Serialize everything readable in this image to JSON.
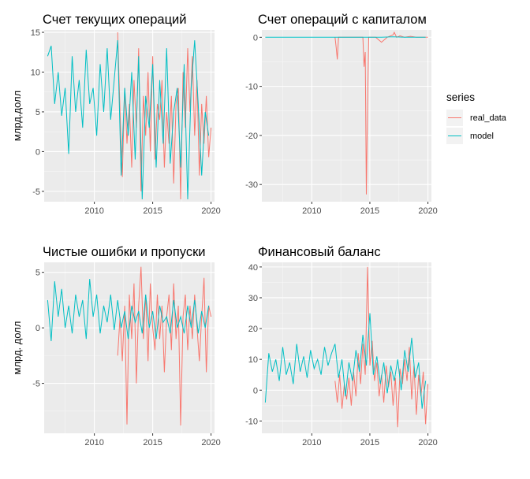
{
  "legend": {
    "title": "series",
    "placement": "right",
    "entries": [
      {
        "label": "real_data",
        "color": "#F8766D"
      },
      {
        "label": "model",
        "color": "#00BFC4"
      }
    ]
  },
  "chart_data": [
    {
      "type": "line",
      "title": "Счет текущих операций",
      "ylabel": "млрд.долл",
      "xlim": [
        2005.7,
        2020.3
      ],
      "ylim": [
        -6.3,
        15.3
      ],
      "xticks": [
        2010,
        2015,
        2020
      ],
      "yticks": [
        -5,
        0,
        5,
        10,
        15
      ],
      "grid": true,
      "series": [
        {
          "name": "real_data",
          "color": "#F8766D",
          "x": [
            2012.0,
            2012.2,
            2012.4,
            2012.6,
            2012.8,
            2013.0,
            2013.2,
            2013.4,
            2013.6,
            2013.8,
            2014.0,
            2014.2,
            2014.4,
            2014.6,
            2014.8,
            2015.0,
            2015.2,
            2015.4,
            2015.6,
            2015.8,
            2016.0,
            2016.2,
            2016.4,
            2016.6,
            2016.8,
            2017.0,
            2017.2,
            2017.4,
            2017.6,
            2017.8,
            2018.0,
            2018.2,
            2018.4,
            2018.6,
            2018.8,
            2019.0,
            2019.2,
            2019.4,
            2019.6,
            2019.8,
            2020.0
          ],
          "y": [
            15.0,
            5,
            -3.2,
            8,
            1,
            6,
            -2,
            9,
            3,
            13,
            -5,
            7,
            2,
            10,
            0,
            12,
            -1,
            6,
            4,
            9,
            -2,
            5,
            1,
            7,
            -4,
            6,
            8,
            -6,
            10,
            3,
            13,
            5,
            12,
            2,
            9,
            -3,
            6,
            1,
            7,
            -0.7,
            3
          ]
        },
        {
          "name": "model",
          "color": "#00BFC4",
          "x": [
            2006.0,
            2006.3,
            2006.6,
            2006.9,
            2007.2,
            2007.5,
            2007.8,
            2008.1,
            2008.4,
            2008.7,
            2009.0,
            2009.3,
            2009.6,
            2009.9,
            2010.2,
            2010.5,
            2010.8,
            2011.1,
            2011.4,
            2011.7,
            2012.0,
            2012.3,
            2012.6,
            2012.9,
            2013.2,
            2013.5,
            2013.8,
            2014.1,
            2014.4,
            2014.7,
            2015.0,
            2015.3,
            2015.6,
            2015.9,
            2016.2,
            2016.5,
            2016.8,
            2017.1,
            2017.4,
            2017.7,
            2018.0,
            2018.3,
            2018.6,
            2018.9,
            2019.2,
            2019.5,
            2019.8
          ],
          "y": [
            12,
            13.3,
            6,
            10,
            4.5,
            8,
            -0.3,
            12,
            5,
            9,
            3,
            12.8,
            6,
            8,
            2,
            11,
            5,
            13,
            4,
            9,
            14,
            -3,
            8,
            2,
            10,
            -1,
            12,
            -6,
            7,
            3,
            11,
            -2,
            9,
            1,
            13,
            -1.5,
            5,
            8,
            -2,
            11,
            -6,
            8,
            14,
            6,
            -3,
            5,
            2
          ]
        }
      ]
    },
    {
      "type": "line",
      "title": "Счет операций с капиталом",
      "ylabel": "",
      "xlim": [
        2005.7,
        2020.3
      ],
      "ylim": [
        -33.5,
        1.5
      ],
      "xticks": [
        2010,
        2015,
        2020
      ],
      "yticks": [
        -30,
        -20,
        -10,
        0
      ],
      "grid": true,
      "series": [
        {
          "name": "real_data",
          "color": "#F8766D",
          "x": [
            2012.0,
            2012.1,
            2012.2,
            2012.3,
            2012.5,
            2013.0,
            2013.5,
            2014.0,
            2014.4,
            2014.5,
            2014.6,
            2014.7,
            2014.8,
            2014.9,
            2015.0,
            2015.5,
            2016.0,
            2016.5,
            2017.0,
            2017.1,
            2017.3,
            2017.6,
            2018.0,
            2018.5,
            2019.0,
            2019.5,
            2020.0
          ],
          "y": [
            0,
            -2,
            -4.5,
            0,
            0,
            0,
            0,
            0,
            0,
            -6,
            -3,
            -32,
            -14,
            0,
            0,
            0,
            -1,
            0,
            0.5,
            1,
            0,
            0.3,
            0,
            0.2,
            0,
            0,
            0
          ]
        },
        {
          "name": "model",
          "color": "#00BFC4",
          "x": [
            2006.0,
            2008.0,
            2010.0,
            2012.0,
            2014.0,
            2016.0,
            2017.0,
            2018.0,
            2019.0,
            2019.8
          ],
          "y": [
            0,
            0,
            0,
            0,
            0,
            0,
            0.1,
            0,
            0,
            0
          ]
        }
      ]
    },
    {
      "type": "line",
      "title": "Чистые ошибки и пропуски",
      "ylabel": "млрд. долл",
      "xlim": [
        2005.7,
        2020.3
      ],
      "ylim": [
        -9.5,
        5.9
      ],
      "xticks": [
        2010,
        2015,
        2020
      ],
      "yticks": [
        -5,
        0,
        5
      ],
      "grid": true,
      "series": [
        {
          "name": "real_data",
          "color": "#F8766D",
          "x": [
            2012.0,
            2012.2,
            2012.4,
            2012.6,
            2012.8,
            2013.0,
            2013.2,
            2013.4,
            2013.6,
            2013.8,
            2014.0,
            2014.2,
            2014.4,
            2014.6,
            2014.8,
            2015.0,
            2015.2,
            2015.4,
            2015.6,
            2015.8,
            2016.0,
            2016.2,
            2016.4,
            2016.6,
            2016.8,
            2017.0,
            2017.2,
            2017.4,
            2017.6,
            2017.8,
            2018.0,
            2018.2,
            2018.4,
            2018.6,
            2018.8,
            2019.0,
            2019.2,
            2019.4,
            2019.6,
            2019.8,
            2020.0
          ],
          "y": [
            -2.5,
            1,
            -3,
            2,
            -8.7,
            3,
            -1,
            4,
            -5,
            2,
            5.5,
            -1,
            3,
            -3,
            4,
            0,
            -2,
            3,
            -1,
            2,
            -4,
            1,
            3,
            -2,
            4,
            -1,
            2,
            -8.8,
            1,
            3,
            -2,
            2,
            -1,
            3,
            0,
            -3,
            1,
            4.5,
            -4,
            2,
            1
          ]
        },
        {
          "name": "model",
          "color": "#00BFC4",
          "x": [
            2006.0,
            2006.3,
            2006.6,
            2006.9,
            2007.2,
            2007.5,
            2007.8,
            2008.1,
            2008.4,
            2008.7,
            2009.0,
            2009.3,
            2009.6,
            2009.9,
            2010.2,
            2010.5,
            2010.8,
            2011.1,
            2011.4,
            2011.7,
            2012.0,
            2012.3,
            2012.6,
            2012.9,
            2013.2,
            2013.5,
            2013.8,
            2014.1,
            2014.4,
            2014.7,
            2015.0,
            2015.3,
            2015.6,
            2015.9,
            2016.2,
            2016.5,
            2016.8,
            2017.1,
            2017.4,
            2017.7,
            2018.0,
            2018.3,
            2018.6,
            2018.9,
            2019.2,
            2019.5,
            2019.8
          ],
          "y": [
            2.5,
            -1.2,
            4.2,
            1,
            3.5,
            0,
            2,
            -0.5,
            3,
            1,
            2.5,
            -1,
            4.4,
            1,
            3,
            -0.5,
            2,
            0.5,
            3,
            -0.2,
            2.5,
            0,
            1.5,
            -1,
            2,
            0.5,
            1.5,
            -0.5,
            3,
            0,
            1.5,
            -1,
            2,
            0.5,
            1,
            -0.5,
            2.5,
            0,
            1,
            -0.5,
            2,
            0,
            2.5,
            -0.5,
            1.5,
            0,
            2
          ]
        }
      ]
    },
    {
      "type": "line",
      "title": "Финансовый баланс",
      "ylabel": "",
      "xlim": [
        2005.7,
        2020.3
      ],
      "ylim": [
        -14,
        41.5
      ],
      "xticks": [
        2010,
        2015,
        2020
      ],
      "yticks": [
        -10,
        0,
        10,
        20,
        30,
        40
      ],
      "grid": true,
      "series": [
        {
          "name": "real_data",
          "color": "#F8766D",
          "x": [
            2012.0,
            2012.2,
            2012.4,
            2012.6,
            2012.8,
            2013.0,
            2013.2,
            2013.4,
            2013.6,
            2013.8,
            2014.0,
            2014.2,
            2014.4,
            2014.6,
            2014.8,
            2015.0,
            2015.2,
            2015.4,
            2015.6,
            2015.8,
            2016.0,
            2016.2,
            2016.4,
            2016.6,
            2016.8,
            2017.0,
            2017.2,
            2017.4,
            2017.6,
            2017.8,
            2018.0,
            2018.2,
            2018.4,
            2018.6,
            2018.8,
            2019.0,
            2019.2,
            2019.4,
            2019.6,
            2019.8,
            2020.0
          ],
          "y": [
            3,
            -4,
            5,
            -6,
            2,
            -3,
            4,
            -5,
            6,
            -2,
            12,
            2,
            15,
            5,
            40,
            8,
            16,
            3,
            9,
            -2,
            5,
            -4,
            8,
            1,
            6,
            -5,
            4,
            -12,
            7,
            2,
            10,
            3,
            14,
            -3,
            8,
            -8,
            5,
            -2,
            6,
            -11,
            2
          ]
        },
        {
          "name": "model",
          "color": "#00BFC4",
          "x": [
            2006.0,
            2006.3,
            2006.6,
            2006.9,
            2007.2,
            2007.5,
            2007.8,
            2008.1,
            2008.4,
            2008.7,
            2009.0,
            2009.3,
            2009.6,
            2009.9,
            2010.2,
            2010.5,
            2010.8,
            2011.1,
            2011.4,
            2011.7,
            2012.0,
            2012.3,
            2012.6,
            2012.9,
            2013.2,
            2013.5,
            2013.8,
            2014.1,
            2014.4,
            2014.7,
            2015.0,
            2015.3,
            2015.6,
            2015.9,
            2016.2,
            2016.5,
            2016.8,
            2017.1,
            2017.4,
            2017.7,
            2018.0,
            2018.3,
            2018.6,
            2018.9,
            2019.2,
            2019.5,
            2019.8
          ],
          "y": [
            -4,
            12,
            6,
            10,
            3,
            14,
            5,
            9,
            2,
            15,
            6,
            11,
            4,
            13,
            7,
            10,
            5,
            14,
            8,
            12,
            15,
            4,
            10,
            -2,
            9,
            3,
            13,
            6,
            18,
            8,
            25,
            5,
            11,
            2,
            9,
            -1,
            8,
            3,
            10,
            0,
            13,
            6,
            17,
            4,
            9,
            -6,
            3
          ]
        }
      ]
    }
  ]
}
